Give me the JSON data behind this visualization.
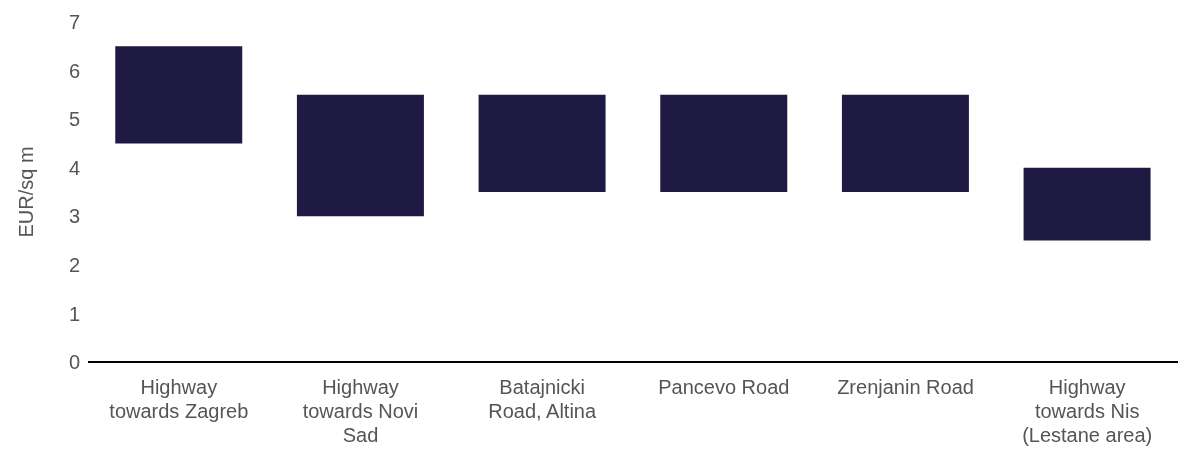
{
  "chart_data": {
    "type": "bar",
    "ylabel": "EUR/sq m",
    "categories": [
      "Highway towards Zagreb",
      "Highway towards Novi Sad",
      "Batajnicki Road, Altina",
      "Pancevo Road",
      "Zrenjanin Road",
      "Highway towards Nis (Lestane area)"
    ],
    "base": [
      4.5,
      3,
      3.5,
      3.5,
      3.5,
      2.5
    ],
    "values": [
      2,
      2.5,
      2,
      2,
      2,
      1.5
    ],
    "color": "#1f1a44",
    "ylim": [
      0,
      7
    ],
    "yticks": [
      0,
      1,
      2,
      3,
      4,
      5,
      6,
      7
    ],
    "grid": false,
    "legend": false
  }
}
